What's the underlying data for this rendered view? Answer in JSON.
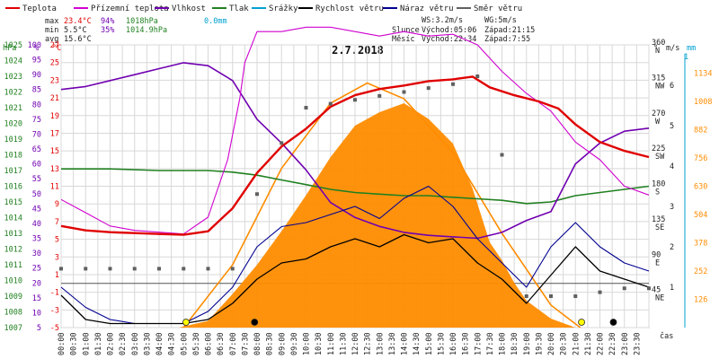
{
  "chart_data": {
    "type": "line",
    "title": "2.7.2018",
    "time_axis_label": "čas",
    "time_ticks": [
      "00:00",
      "00:30",
      "01:00",
      "01:30",
      "02:00",
      "02:30",
      "03:00",
      "03:30",
      "04:00",
      "04:30",
      "05:00",
      "05:30",
      "06:00",
      "06:30",
      "07:00",
      "07:30",
      "08:00",
      "08:30",
      "09:00",
      "09:30",
      "10:00",
      "10:30",
      "11:00",
      "11:30",
      "12:00",
      "12:30",
      "13:00",
      "13:30",
      "14:00",
      "14:30",
      "15:00",
      "15:30",
      "16:00",
      "16:30",
      "17:00",
      "17:30",
      "18:00",
      "18:30",
      "19:00",
      "19:30",
      "20:00",
      "20:30",
      "21:00",
      "21:30",
      "22:00",
      "22:30",
      "23:00",
      "23:30"
    ],
    "legend": [
      {
        "label": "Teplota",
        "color": "#e00000"
      },
      {
        "label": "Přízemní teplota",
        "color": "#d000d0"
      },
      {
        "label": "Vlhkost",
        "color": "#7000b0"
      },
      {
        "label": "Tlak",
        "color": "#208020"
      },
      {
        "label": "Srážky",
        "color": "#00a0d0"
      },
      {
        "label": "Rychlost větru",
        "color": "#000000"
      },
      {
        "label": "Náraz větru",
        "color": "#000090"
      },
      {
        "label": "Směr větru",
        "color": "#606060"
      }
    ],
    "stats": {
      "max": {
        "label": "max",
        "temp": "23.4°C",
        "hum": "94%",
        "press": "1018hPa",
        "rain": "0.0mm"
      },
      "min": {
        "label": "min",
        "temp": "5.5°C",
        "hum": "35%",
        "press": "1014.9hPa"
      },
      "avg": {
        "label": "avg",
        "temp": "15.6°C"
      }
    },
    "wind_info": {
      "ws": "WS:3.2m/s",
      "wg": "WG:5m/s"
    },
    "sun": {
      "label": "Slunce",
      "rise": "Východ:05:06",
      "set": "Západ:21:15"
    },
    "moon": {
      "label": "Měsíc",
      "rise": "Východ:22:34",
      "set": "Západ:7:55"
    },
    "axes": {
      "hpa": {
        "label": "hPa",
        "ticks": [
          "1025",
          "1024",
          "1023",
          "1022",
          "1021",
          "1020",
          "1019",
          "1018",
          "1017",
          "1016",
          "1015",
          "1014",
          "1013",
          "1012",
          "1011",
          "1010",
          "1009",
          "1008",
          "1007"
        ],
        "range": [
          1007,
          1025
        ]
      },
      "pct": {
        "label": "%",
        "ticks": [
          "100",
          "95",
          "90",
          "85",
          "80",
          "75",
          "70",
          "65",
          "60",
          "55",
          "50",
          "45",
          "40",
          "35",
          "30",
          "25",
          "20",
          "15",
          "10",
          "5"
        ],
        "range": [
          5,
          100
        ]
      },
      "temp": {
        "label": "°C",
        "ticks": [
          "27",
          "25",
          "23",
          "21",
          "19",
          "17",
          "15",
          "13",
          "11",
          "9",
          "7",
          "5",
          "3",
          "1",
          "-1",
          "-3",
          "-5"
        ],
        "range": [
          -5,
          27
        ]
      },
      "dir": {
        "label": "°",
        "ticks": [
          "360",
          "315",
          "270",
          "225",
          "180",
          "135",
          "90",
          "45"
        ],
        "names": [
          "N",
          "NW",
          "W",
          "SW",
          "S",
          "SE",
          "E",
          "NE"
        ],
        "range": [
          0,
          360
        ]
      },
      "ms": {
        "label": "m/s",
        "ticks": [
          "1",
          "2",
          "3",
          "4",
          "5",
          "6"
        ],
        "range": [
          0,
          7
        ]
      },
      "wm2": {
        "label": "W/m2",
        "ticks": [
          "1134",
          "1008",
          "882",
          "756",
          "630",
          "504",
          "378",
          "252",
          "126"
        ],
        "range": [
          0,
          1260
        ]
      },
      "mm": {
        "label": "mm",
        "top": "1"
      }
    },
    "series": {
      "temp": [
        [
          0,
          6.5
        ],
        [
          1,
          6.0
        ],
        [
          2,
          5.8
        ],
        [
          3,
          5.7
        ],
        [
          4,
          5.6
        ],
        [
          5,
          5.5
        ],
        [
          6,
          5.9
        ],
        [
          7,
          8.5
        ],
        [
          8,
          12.5
        ],
        [
          9,
          15.5
        ],
        [
          10,
          17.5
        ],
        [
          11,
          20.0
        ],
        [
          12,
          21.3
        ],
        [
          13,
          22.0
        ],
        [
          14,
          22.4
        ],
        [
          15,
          22.9
        ],
        [
          16,
          23.1
        ],
        [
          16.8,
          23.4
        ],
        [
          17.5,
          22.2
        ],
        [
          18.5,
          21.3
        ],
        [
          19.5,
          20.6
        ],
        [
          20.3,
          19.8
        ],
        [
          21,
          18.0
        ],
        [
          22,
          16.0
        ],
        [
          23,
          15.0
        ],
        [
          24,
          14.3
        ]
      ],
      "ground_temp": [
        [
          0,
          9.5
        ],
        [
          1,
          8.0
        ],
        [
          2,
          6.5
        ],
        [
          3,
          6.0
        ],
        [
          4,
          5.8
        ],
        [
          5,
          5.6
        ],
        [
          6,
          7.5
        ],
        [
          6.8,
          14
        ],
        [
          7.3,
          21
        ],
        [
          7.5,
          25
        ],
        [
          8,
          28.5
        ],
        [
          9,
          28.5
        ],
        [
          10,
          29
        ],
        [
          11,
          29
        ],
        [
          12,
          28.5
        ],
        [
          13,
          28
        ],
        [
          14,
          28.5
        ],
        [
          15,
          28
        ],
        [
          16,
          28.2
        ],
        [
          17,
          27
        ],
        [
          18,
          24
        ],
        [
          19,
          21.5
        ],
        [
          20,
          19.5
        ],
        [
          21,
          16
        ],
        [
          22,
          14
        ],
        [
          23,
          11
        ],
        [
          24,
          10
        ]
      ],
      "humidity": [
        [
          0,
          85
        ],
        [
          1,
          86
        ],
        [
          2,
          88
        ],
        [
          3,
          90
        ],
        [
          4,
          92
        ],
        [
          5,
          94
        ],
        [
          6,
          93
        ],
        [
          7,
          88
        ],
        [
          8,
          75
        ],
        [
          9,
          67
        ],
        [
          10,
          58
        ],
        [
          11,
          47
        ],
        [
          12,
          42
        ],
        [
          13,
          39
        ],
        [
          14,
          37
        ],
        [
          15,
          36
        ],
        [
          16,
          35.5
        ],
        [
          17,
          35
        ],
        [
          18,
          37
        ],
        [
          19,
          41
        ],
        [
          20,
          44
        ],
        [
          21,
          60
        ],
        [
          22,
          67
        ],
        [
          23,
          71
        ],
        [
          24,
          72
        ]
      ],
      "pressure": [
        [
          0,
          1017.1
        ],
        [
          2,
          1017.1
        ],
        [
          4,
          1017.0
        ],
        [
          6,
          1017.0
        ],
        [
          7,
          1016.9
        ],
        [
          8,
          1016.7
        ],
        [
          9,
          1016.4
        ],
        [
          10,
          1016.1
        ],
        [
          11,
          1015.8
        ],
        [
          12,
          1015.6
        ],
        [
          13,
          1015.5
        ],
        [
          14,
          1015.4
        ],
        [
          15,
          1015.4
        ],
        [
          16,
          1015.3
        ],
        [
          17,
          1015.2
        ],
        [
          18,
          1015.1
        ],
        [
          19,
          1014.9
        ],
        [
          20,
          1015.0
        ],
        [
          21,
          1015.4
        ],
        [
          22,
          1015.6
        ],
        [
          23,
          1015.8
        ],
        [
          24,
          1016.0
        ]
      ],
      "solar_clear_sky": [
        [
          5,
          0
        ],
        [
          7,
          280
        ],
        [
          9,
          710
        ],
        [
          11,
          1000
        ],
        [
          12.5,
          1090
        ],
        [
          14,
          1020
        ],
        [
          16,
          780
        ],
        [
          18,
          420
        ],
        [
          20,
          100
        ],
        [
          21.2,
          0
        ]
      ],
      "solar_measured": [
        [
          4.8,
          0
        ],
        [
          6,
          30
        ],
        [
          7,
          150
        ],
        [
          8,
          280
        ],
        [
          9,
          430
        ],
        [
          10,
          590
        ],
        [
          11,
          760
        ],
        [
          12,
          900
        ],
        [
          13,
          960
        ],
        [
          14,
          1000
        ],
        [
          15,
          930
        ],
        [
          16,
          820
        ],
        [
          16.8,
          620
        ],
        [
          17.5,
          380
        ],
        [
          18,
          300
        ],
        [
          18.5,
          200
        ],
        [
          19,
          120
        ],
        [
          19.5,
          80
        ],
        [
          20,
          40
        ],
        [
          20.5,
          20
        ],
        [
          21,
          0
        ]
      ],
      "wind_dir": [
        [
          0,
          75
        ],
        [
          1,
          75
        ],
        [
          2,
          75
        ],
        [
          3,
          75
        ],
        [
          4,
          75
        ],
        [
          5,
          75
        ],
        [
          6,
          75
        ],
        [
          7,
          75
        ],
        [
          8,
          170
        ],
        [
          9,
          235
        ],
        [
          10,
          280
        ],
        [
          11,
          285
        ],
        [
          12,
          290
        ],
        [
          13,
          295
        ],
        [
          14,
          300
        ],
        [
          15,
          305
        ],
        [
          16,
          310
        ],
        [
          17,
          320
        ],
        [
          18,
          220
        ],
        [
          19,
          40
        ],
        [
          20,
          40
        ],
        [
          21,
          40
        ],
        [
          22,
          45
        ],
        [
          23,
          50
        ],
        [
          24,
          50
        ]
      ],
      "wind_speed": [
        [
          0,
          0.8
        ],
        [
          1,
          0.2
        ],
        [
          2,
          0.1
        ],
        [
          3,
          0.1
        ],
        [
          4,
          0.1
        ],
        [
          5,
          0.1
        ],
        [
          6,
          0.2
        ],
        [
          7,
          0.6
        ],
        [
          8,
          1.2
        ],
        [
          9,
          1.6
        ],
        [
          10,
          1.7
        ],
        [
          11,
          2.0
        ],
        [
          12,
          2.2
        ],
        [
          13,
          2.0
        ],
        [
          14,
          2.3
        ],
        [
          15,
          2.1
        ],
        [
          16,
          2.2
        ],
        [
          17,
          1.6
        ],
        [
          18,
          1.2
        ],
        [
          19,
          0.6
        ],
        [
          20,
          1.3
        ],
        [
          21,
          2.0
        ],
        [
          22,
          1.4
        ],
        [
          23,
          1.2
        ],
        [
          24,
          1.0
        ]
      ],
      "wind_gust": [
        [
          0,
          1.0
        ],
        [
          1,
          0.5
        ],
        [
          2,
          0.2
        ],
        [
          3,
          0.1
        ],
        [
          4,
          0.1
        ],
        [
          5,
          0.1
        ],
        [
          6,
          0.4
        ],
        [
          7,
          1.0
        ],
        [
          8,
          2.0
        ],
        [
          9,
          2.5
        ],
        [
          10,
          2.6
        ],
        [
          11,
          2.8
        ],
        [
          12,
          3.0
        ],
        [
          13,
          2.7
        ],
        [
          14,
          3.2
        ],
        [
          15,
          3.5
        ],
        [
          16,
          3.0
        ],
        [
          17,
          2.2
        ],
        [
          18,
          1.6
        ],
        [
          19,
          1.0
        ],
        [
          20,
          2.0
        ],
        [
          21,
          2.6
        ],
        [
          22,
          2.0
        ],
        [
          23,
          1.6
        ],
        [
          24,
          1.4
        ]
      ]
    },
    "markers": [
      {
        "type": "sun-rise",
        "hour": 5.1
      },
      {
        "type": "moon-set",
        "hour": 7.9
      },
      {
        "type": "sun-set",
        "hour": 21.25
      },
      {
        "type": "moon-rise",
        "hour": 22.55
      }
    ]
  }
}
